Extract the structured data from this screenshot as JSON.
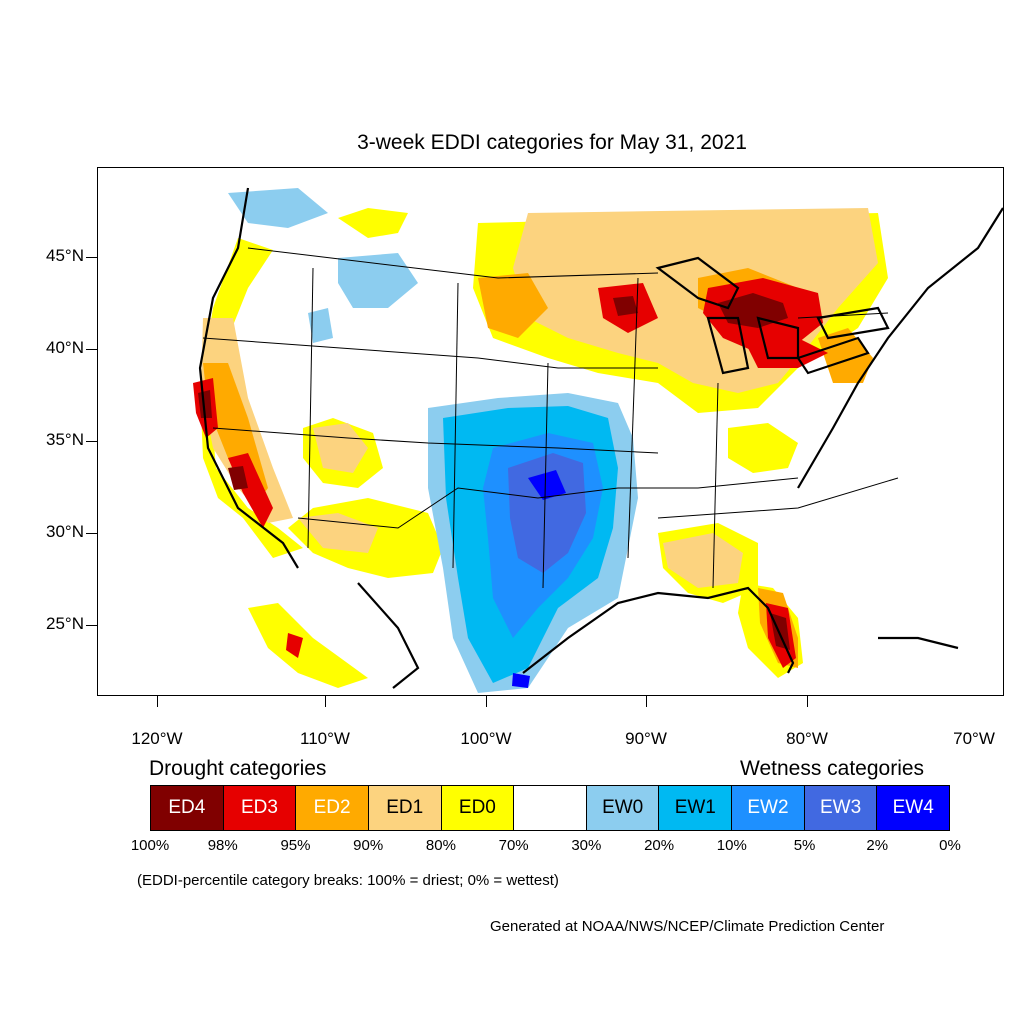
{
  "title": "3-week EDDI categories for May 31, 2021",
  "lat_labels": [
    "45°N",
    "40°N",
    "35°N",
    "30°N",
    "25°N"
  ],
  "lon_labels": [
    "120°W",
    "110°W",
    "100°W",
    "90°W",
    "80°W",
    "70°W"
  ],
  "legend": {
    "drought_heading": "Drought categories",
    "wetness_heading": "Wetness categories",
    "categories": [
      {
        "label": "ED4",
        "color": "#800000",
        "text_color": "#ffffff"
      },
      {
        "label": "ED3",
        "color": "#e60000",
        "text_color": "#ffffff"
      },
      {
        "label": "ED2",
        "color": "#ffaa00",
        "text_color": "#ffffff"
      },
      {
        "label": "ED1",
        "color": "#fcd37f",
        "text_color": "#000000"
      },
      {
        "label": "ED0",
        "color": "#ffff00",
        "text_color": "#000000"
      },
      {
        "label": "",
        "color": "#ffffff",
        "text_color": "#000000"
      },
      {
        "label": "EW0",
        "color": "#8ccdef",
        "text_color": "#000000"
      },
      {
        "label": "EW1",
        "color": "#00b9f2",
        "text_color": "#000000"
      },
      {
        "label": "EW2",
        "color": "#1e90ff",
        "text_color": "#ffffff"
      },
      {
        "label": "EW3",
        "color": "#4169e1",
        "text_color": "#ffffff"
      },
      {
        "label": "EW4",
        "color": "#0000ff",
        "text_color": "#ffffff"
      }
    ],
    "percentiles": [
      "100%",
      "98%",
      "95%",
      "90%",
      "80%",
      "70%",
      "30%",
      "20%",
      "10%",
      "5%",
      "2%",
      "0%"
    ]
  },
  "note": "(EDDI-percentile category breaks: 100% = driest; 0% = wettest)",
  "credit": "Generated at NOAA/NWS/NCEP/Climate Prediction Center"
}
